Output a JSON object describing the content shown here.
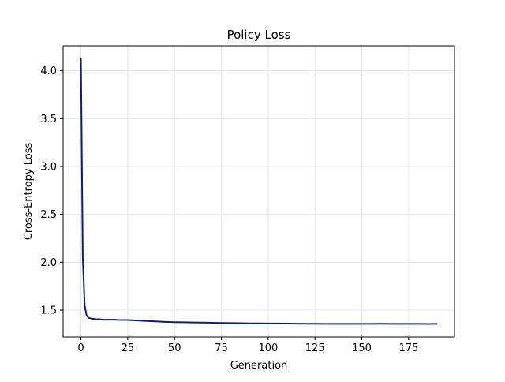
{
  "chart_data": {
    "type": "line",
    "title": "Policy Loss",
    "xlabel": "Generation",
    "ylabel": "Cross-Entropy Loss",
    "xlim": [
      -9.5,
      199.5
    ],
    "ylim": [
      1.22,
      4.26
    ],
    "xticks": [
      0,
      25,
      50,
      75,
      100,
      125,
      150,
      175
    ],
    "yticks": [
      1.5,
      2.0,
      2.5,
      3.0,
      3.5,
      4.0
    ],
    "xtick_labels": [
      "0",
      "25",
      "50",
      "75",
      "100",
      "125",
      "150",
      "175"
    ],
    "ytick_labels": [
      "1.5",
      "2.0",
      "2.5",
      "3.0",
      "3.5",
      "4.0"
    ],
    "grid": true,
    "legend": "none",
    "series": [
      {
        "color": "#0a1f7a",
        "x": [
          0,
          1,
          2,
          3,
          4,
          5,
          6,
          7,
          8,
          10,
          12,
          15,
          18,
          20,
          25,
          30,
          35,
          40,
          45,
          50,
          55,
          60,
          65,
          70,
          75,
          80,
          85,
          90,
          95,
          100,
          105,
          110,
          115,
          120,
          125,
          130,
          135,
          140,
          145,
          150,
          155,
          160,
          165,
          170,
          175,
          180,
          185,
          190
        ],
        "y": [
          4.13,
          2.05,
          1.55,
          1.45,
          1.42,
          1.415,
          1.41,
          1.41,
          1.405,
          1.405,
          1.4,
          1.4,
          1.4,
          1.398,
          1.397,
          1.392,
          1.387,
          1.383,
          1.378,
          1.375,
          1.373,
          1.371,
          1.37,
          1.368,
          1.366,
          1.365,
          1.364,
          1.362,
          1.362,
          1.361,
          1.361,
          1.36,
          1.359,
          1.358,
          1.358,
          1.357,
          1.357,
          1.357,
          1.357,
          1.357,
          1.357,
          1.358,
          1.357,
          1.357,
          1.357,
          1.357,
          1.356,
          1.357
        ]
      }
    ]
  }
}
